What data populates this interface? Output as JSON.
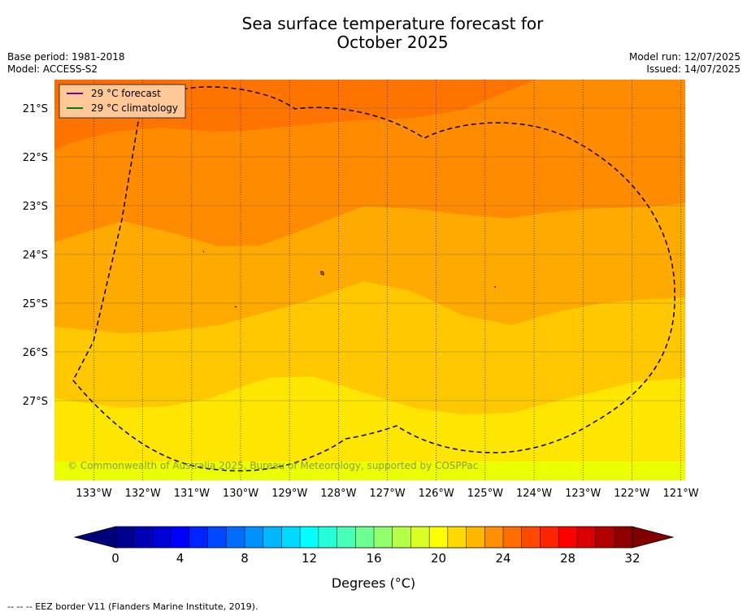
{
  "title": {
    "line1": "Sea surface temperature forecast for",
    "line2": "October 2025"
  },
  "meta": {
    "base_period": "Base period: 1981-2018",
    "model": "Model: ACCESS-S2",
    "model_run": "Model run: 12/07/2025",
    "issued": "Issued: 14/07/2025"
  },
  "legend": {
    "forecast": "29 °C  forecast",
    "climatology": "29 °C  climatology",
    "forecast_color": "#800080",
    "climatology_color": "#008000"
  },
  "axes": {
    "lat_labels": [
      "21°S",
      "22°S",
      "23°S",
      "24°S",
      "25°S",
      "26°S",
      "27°S"
    ],
    "lon_labels": [
      "133°W",
      "132°W",
      "131°W",
      "130°W",
      "129°W",
      "128°W",
      "127°W",
      "126°W",
      "125°W",
      "124°W",
      "123°W",
      "122°W",
      "121°W"
    ]
  },
  "copyright": "© Commonwealth of Australia 2025, Bureau of Meteorology, supported by COSPPac",
  "colorbar": {
    "ticks": [
      "0",
      "4",
      "8",
      "12",
      "16",
      "20",
      "24",
      "28",
      "32"
    ],
    "label": "Degrees (°C)",
    "colors": [
      "#00008f",
      "#0000b4",
      "#0000d8",
      "#0000ff",
      "#0024ff",
      "#0048ff",
      "#006dff",
      "#0091ff",
      "#00b6ff",
      "#00daff",
      "#00ffff",
      "#24ffda",
      "#48ffb6",
      "#6dff91",
      "#91ff6d",
      "#b6ff48",
      "#daff24",
      "#ffff00",
      "#ffda00",
      "#ffb600",
      "#ff9100",
      "#ff6d00",
      "#ff4800",
      "#ff2400",
      "#ff0000",
      "#d80000",
      "#b40000",
      "#8f0000"
    ]
  },
  "footer": "--  --  -- EEZ border V11 (Flanders Marine Institute, 2019)."
}
